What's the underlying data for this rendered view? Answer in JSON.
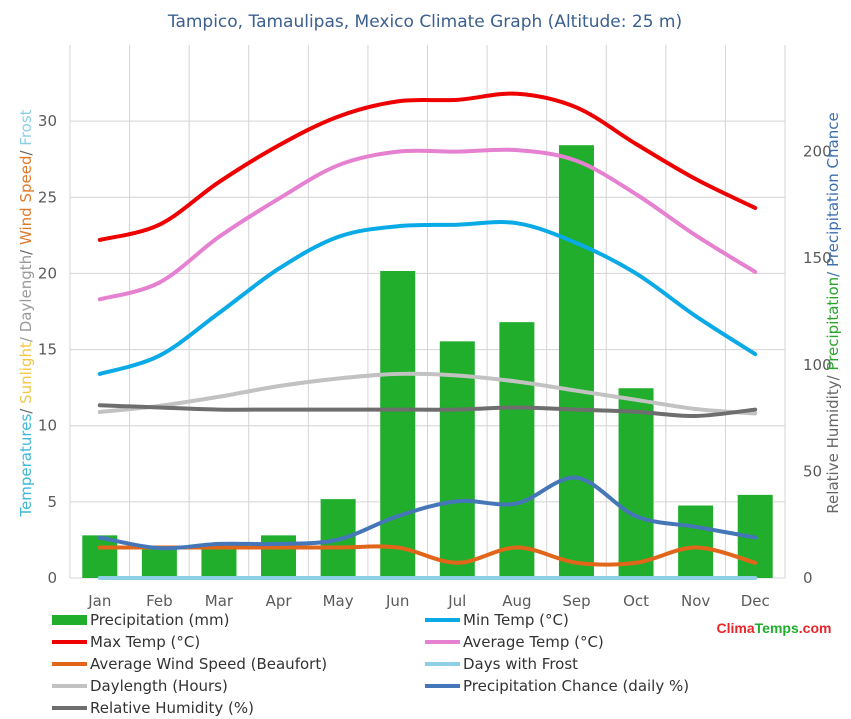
{
  "chart_data": {
    "type": "bar+line",
    "title": "Tampico, Tamaulipas, Mexico Climate Graph (Altitude: 25 m)",
    "categories": [
      "Jan",
      "Feb",
      "Mar",
      "Apr",
      "May",
      "Jun",
      "Jul",
      "Aug",
      "Sep",
      "Oct",
      "Nov",
      "Dec"
    ],
    "left_axis": {
      "label_parts": [
        {
          "text": "Temperatures",
          "color": "#3fb8d8"
        },
        {
          "text": "/ ",
          "color": "#666666"
        },
        {
          "text": "Sunlight",
          "color": "#f2c744"
        },
        {
          "text": "/ Daylength",
          "color": "#9a9a9a"
        },
        {
          "text": "/ ",
          "color": "#666666"
        },
        {
          "text": "Wind Speed",
          "color": "#e07a2a"
        },
        {
          "text": "/ ",
          "color": "#666666"
        },
        {
          "text": "Frost",
          "color": "#8ccfe6"
        }
      ],
      "ylim": [
        0,
        35
      ],
      "ticks": [
        "0",
        "5",
        "10",
        "15",
        "20",
        "25",
        "30"
      ]
    },
    "right_axis": {
      "label_parts": [
        {
          "text": "Relative Humidity/ ",
          "color": "#666666"
        },
        {
          "text": "Precipitation",
          "color": "#2aa52a"
        },
        {
          "text": "/ Precipitation Chance",
          "color": "#3d6fb0"
        }
      ],
      "ylim": [
        0,
        250
      ],
      "ticks": [
        "0",
        "50",
        "100",
        "150",
        "200"
      ]
    },
    "grid": true,
    "bars": {
      "name": "Precipitation (mm)",
      "axis": "right",
      "color": "#21ae2d",
      "values": [
        20,
        15,
        14,
        20,
        37,
        144,
        111,
        120,
        203,
        89,
        34,
        39
      ]
    },
    "series": [
      {
        "name": "Max Temp (°C)",
        "axis": "left",
        "color": "#ee0000",
        "width": 4,
        "values": [
          22.2,
          23.2,
          26.0,
          28.4,
          30.3,
          31.3,
          31.4,
          31.8,
          30.9,
          28.5,
          26.2,
          24.3
        ]
      },
      {
        "name": "Average Temp (°C)",
        "axis": "left",
        "color": "#e680d0",
        "width": 4,
        "values": [
          18.3,
          19.4,
          22.4,
          24.9,
          27.1,
          28.0,
          28.0,
          28.1,
          27.4,
          25.2,
          22.5,
          20.1
        ]
      },
      {
        "name": "Min Temp (°C)",
        "axis": "left",
        "color": "#0aaae6",
        "width": 4,
        "values": [
          13.4,
          14.6,
          17.4,
          20.3,
          22.4,
          23.1,
          23.2,
          23.3,
          22.0,
          20.0,
          17.2,
          14.7
        ]
      },
      {
        "name": "Daylength (Hours)",
        "axis": "left",
        "color": "#c2c2c2",
        "width": 4,
        "values": [
          10.9,
          11.3,
          11.9,
          12.6,
          13.1,
          13.4,
          13.3,
          12.9,
          12.3,
          11.7,
          11.1,
          10.8
        ]
      },
      {
        "name": "Relative Humidity (%)",
        "axis": "right",
        "color": "#6e6e6e",
        "width": 4,
        "values": [
          81,
          80,
          79,
          79,
          79,
          79,
          79,
          80,
          79,
          78,
          76,
          79
        ]
      },
      {
        "name": "Precipitation Chance (daily %)",
        "axis": "right",
        "color": "#4476b8",
        "width": 4,
        "values": [
          19,
          14,
          16,
          16,
          18,
          29,
          36,
          35,
          47,
          29,
          24,
          19
        ]
      },
      {
        "name": "Average Wind Speed (Beaufort)",
        "axis": "left",
        "color": "#e2661a",
        "width": 4,
        "values": [
          2,
          2,
          2,
          2,
          2,
          2,
          1,
          2,
          1,
          1,
          2,
          1
        ]
      },
      {
        "name": "Days with Frost",
        "axis": "left",
        "color": "#8ccfe6",
        "width": 4,
        "values": [
          0,
          0,
          0,
          0,
          0,
          0,
          0,
          0,
          0,
          0,
          0,
          0
        ]
      }
    ],
    "legend": {
      "placement": "bottom",
      "items": [
        {
          "name": "Precipitation (mm)",
          "color": "#21ae2d",
          "kind": "bar"
        },
        {
          "name": "Min Temp (°C)",
          "color": "#0aaae6",
          "kind": "line"
        },
        {
          "name": "Max Temp (°C)",
          "color": "#ee0000",
          "kind": "line"
        },
        {
          "name": "Average Temp (°C)",
          "color": "#e680d0",
          "kind": "line"
        },
        {
          "name": "Average Wind Speed (Beaufort)",
          "color": "#e2661a",
          "kind": "line"
        },
        {
          "name": "Days with Frost",
          "color": "#8ccfe6",
          "kind": "line"
        },
        {
          "name": "Daylength (Hours)",
          "color": "#c2c2c2",
          "kind": "line"
        },
        {
          "name": "Precipitation Chance (daily %)",
          "color": "#4476b8",
          "kind": "line"
        },
        {
          "name": "Relative Humidity (%)",
          "color": "#6e6e6e",
          "kind": "line"
        }
      ]
    }
  },
  "colors": {
    "title": "#3b5f8f",
    "grid": "#d4d4d4",
    "brand_red": "#e8262a",
    "brand_green": "#21ae2d"
  },
  "brand": {
    "part1": "Clima",
    "part2": "Temps",
    "part3": ".com"
  }
}
